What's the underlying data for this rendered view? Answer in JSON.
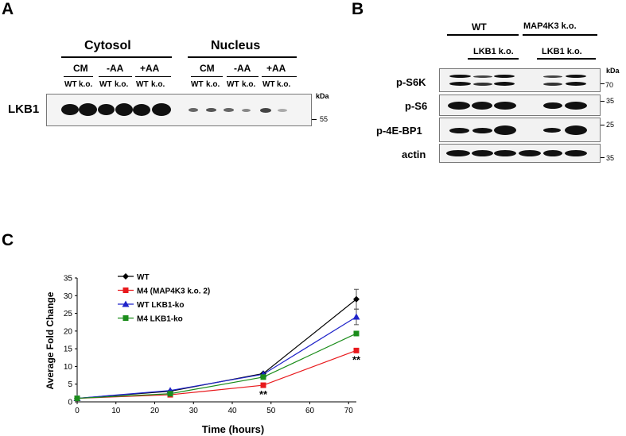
{
  "panels": {
    "a": "A",
    "b": "B",
    "c": "C"
  },
  "panel_a": {
    "headers": [
      "Cytosol",
      "Nucleus"
    ],
    "conditions": [
      "CM",
      "-AA",
      "+AA",
      "CM",
      "-AA",
      "+AA"
    ],
    "lanes": [
      "WT",
      "k.o.",
      "WT",
      "k.o.",
      "WT",
      "k.o.",
      "WT",
      "k.o.",
      "WT",
      "k.o.",
      "WT",
      "k.o."
    ],
    "row_label": "LKB1",
    "kda": "kDa",
    "marker": "55"
  },
  "panel_b": {
    "headers": [
      "WT",
      "MAP4K3 k.o."
    ],
    "sublabels": [
      "LKB1 k.o.",
      "LKB1 k.o."
    ],
    "rows": [
      "p-S6K",
      "p-S6",
      "p-4E-BP1",
      "actin"
    ],
    "kda": "kDa",
    "markers": [
      "70",
      "35",
      "25",
      "35"
    ]
  },
  "chart_data": {
    "type": "line",
    "title": "",
    "xlabel": "Time (hours)",
    "ylabel": "Average Fold Change",
    "xlim": [
      0,
      72
    ],
    "ylim": [
      0,
      35
    ],
    "xticks": [
      0,
      10,
      20,
      30,
      40,
      50,
      60,
      70
    ],
    "yticks": [
      0,
      5,
      10,
      15,
      20,
      25,
      30,
      35
    ],
    "grid": false,
    "legend_position": "top-left",
    "x": [
      0,
      24,
      48,
      72
    ],
    "series": [
      {
        "name": "WT",
        "values": [
          1,
          3,
          8,
          29
        ],
        "color": "#000000",
        "marker": "diamond"
      },
      {
        "name": "M4 (MAP4K3 k.o. 2)",
        "values": [
          1,
          2,
          4.7,
          14.5
        ],
        "color": "#e8191c",
        "marker": "square"
      },
      {
        "name": "WT LKB1-ko",
        "values": [
          1,
          3.2,
          7.8,
          24
        ],
        "color": "#1f23c9",
        "marker": "triangle"
      },
      {
        "name": "M4 LKB1-ko",
        "values": [
          1,
          2.3,
          7,
          19.3
        ],
        "color": "#1b8d1b",
        "marker": "square"
      }
    ],
    "error": {
      "WT": [
        0,
        0,
        0,
        2.8
      ],
      "WT LKB1-ko": [
        0,
        0,
        0,
        2.2
      ]
    },
    "annotations": [
      {
        "text": "**",
        "x": 48,
        "y": 4.7
      },
      {
        "text": "**",
        "x": 72,
        "y": 14.5
      }
    ]
  }
}
